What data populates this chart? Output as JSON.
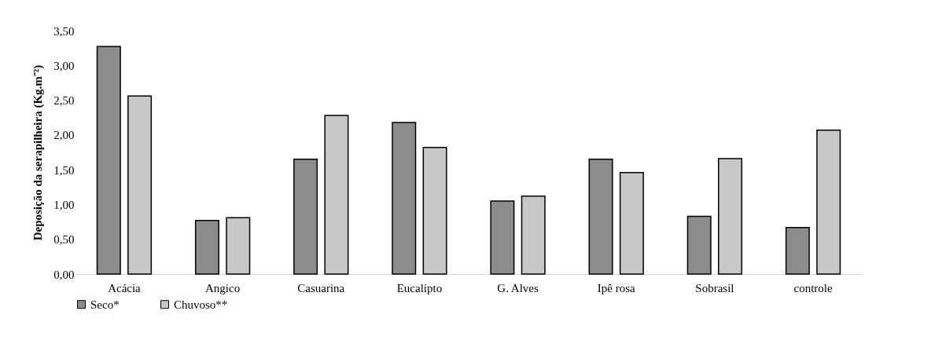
{
  "chart_data": {
    "type": "bar",
    "ylabel": "Deposição da serapilheira (Kg.m⁻²)",
    "categories": [
      "Acácia",
      "Angico",
      "Casuarina",
      "Eucalipto",
      "G. Alves",
      "Ipê rosa",
      "Sobrasil",
      "controle"
    ],
    "series": [
      {
        "name": "Seco*",
        "color": "#8c8c8c",
        "values": [
          3.27,
          0.77,
          1.65,
          2.18,
          1.05,
          1.65,
          0.83,
          0.67
        ]
      },
      {
        "name": "Chuvoso**",
        "color": "#c8c8c8",
        "values": [
          2.56,
          0.81,
          2.28,
          1.82,
          1.12,
          1.46,
          1.66,
          2.07
        ]
      }
    ],
    "ylim": [
      0,
      3.5
    ],
    "yticks": [
      {
        "value": 0,
        "label": "0,00"
      },
      {
        "value": 0.5,
        "label": "0,50"
      },
      {
        "value": 1,
        "label": "1,00"
      },
      {
        "value": 1.5,
        "label": "1,50"
      },
      {
        "value": 2,
        "label": "2,00"
      },
      {
        "value": 2.5,
        "label": "2,50"
      },
      {
        "value": 3,
        "label": "3,00"
      },
      {
        "value": 3.5,
        "label": "3,50"
      }
    ],
    "legend": "bottom"
  }
}
